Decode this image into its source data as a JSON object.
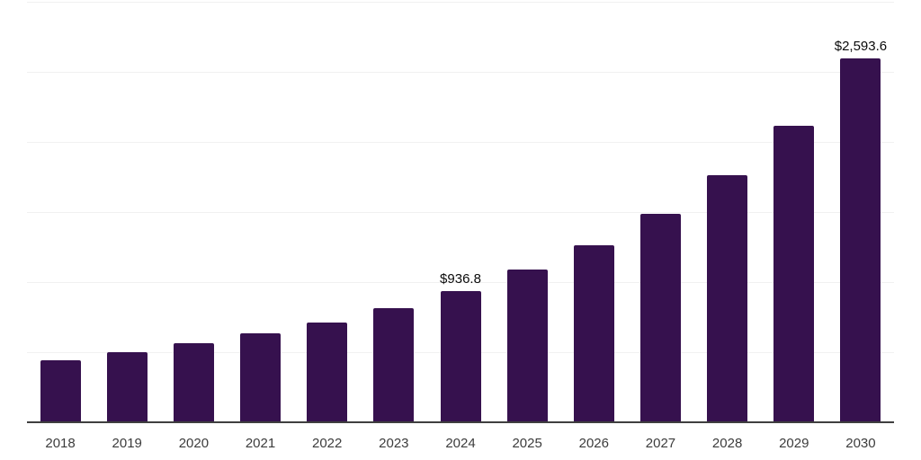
{
  "chart_data": {
    "type": "bar",
    "title": "",
    "xlabel": "",
    "ylabel": "",
    "categories": [
      "2018",
      "2019",
      "2020",
      "2021",
      "2022",
      "2023",
      "2024",
      "2025",
      "2026",
      "2027",
      "2028",
      "2029",
      "2030"
    ],
    "values": [
      440,
      500,
      564,
      632,
      713,
      811,
      936.8,
      1090,
      1266,
      1485,
      1762,
      2117,
      2593.6
    ],
    "data_labels": {
      "2024": "$936.8",
      "2030": "$2,593.6"
    },
    "ylim": [
      0,
      3000
    ],
    "grid_step": 500,
    "grid": true,
    "legend": false,
    "colors": {
      "bar": "#36114e",
      "gridline": "#f1f1f1",
      "axis_line": "#3f3f3f",
      "x_label_text": "#3c3c3c",
      "value_label_text": "#0a0a0a",
      "background": "#ffffff"
    }
  }
}
